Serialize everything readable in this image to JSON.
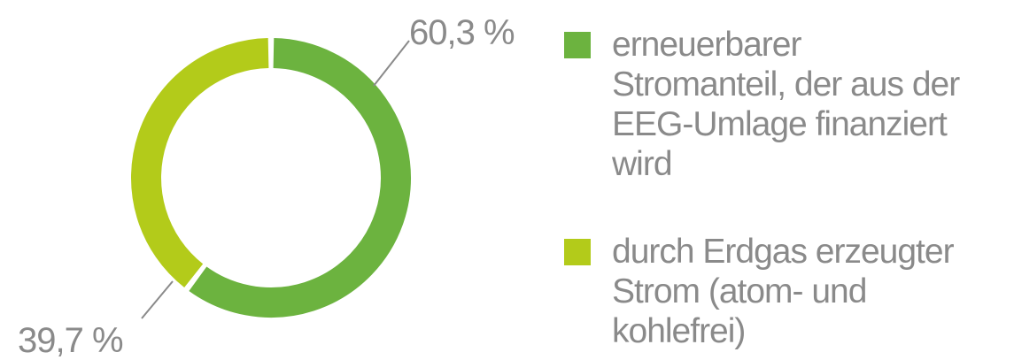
{
  "chart_data": {
    "type": "donut",
    "categories": [
      "erneuerbarer Stromanteil, der aus der EEG-Umlage finanziert wird",
      "durch Erdgas erzeugter Strom (atom- und kohlefrei)"
    ],
    "values": [
      60.3,
      39.7
    ],
    "value_labels": [
      "60,3 %",
      "39,7 %"
    ],
    "colors": [
      "#6cb33f",
      "#b3cb1a"
    ]
  }
}
